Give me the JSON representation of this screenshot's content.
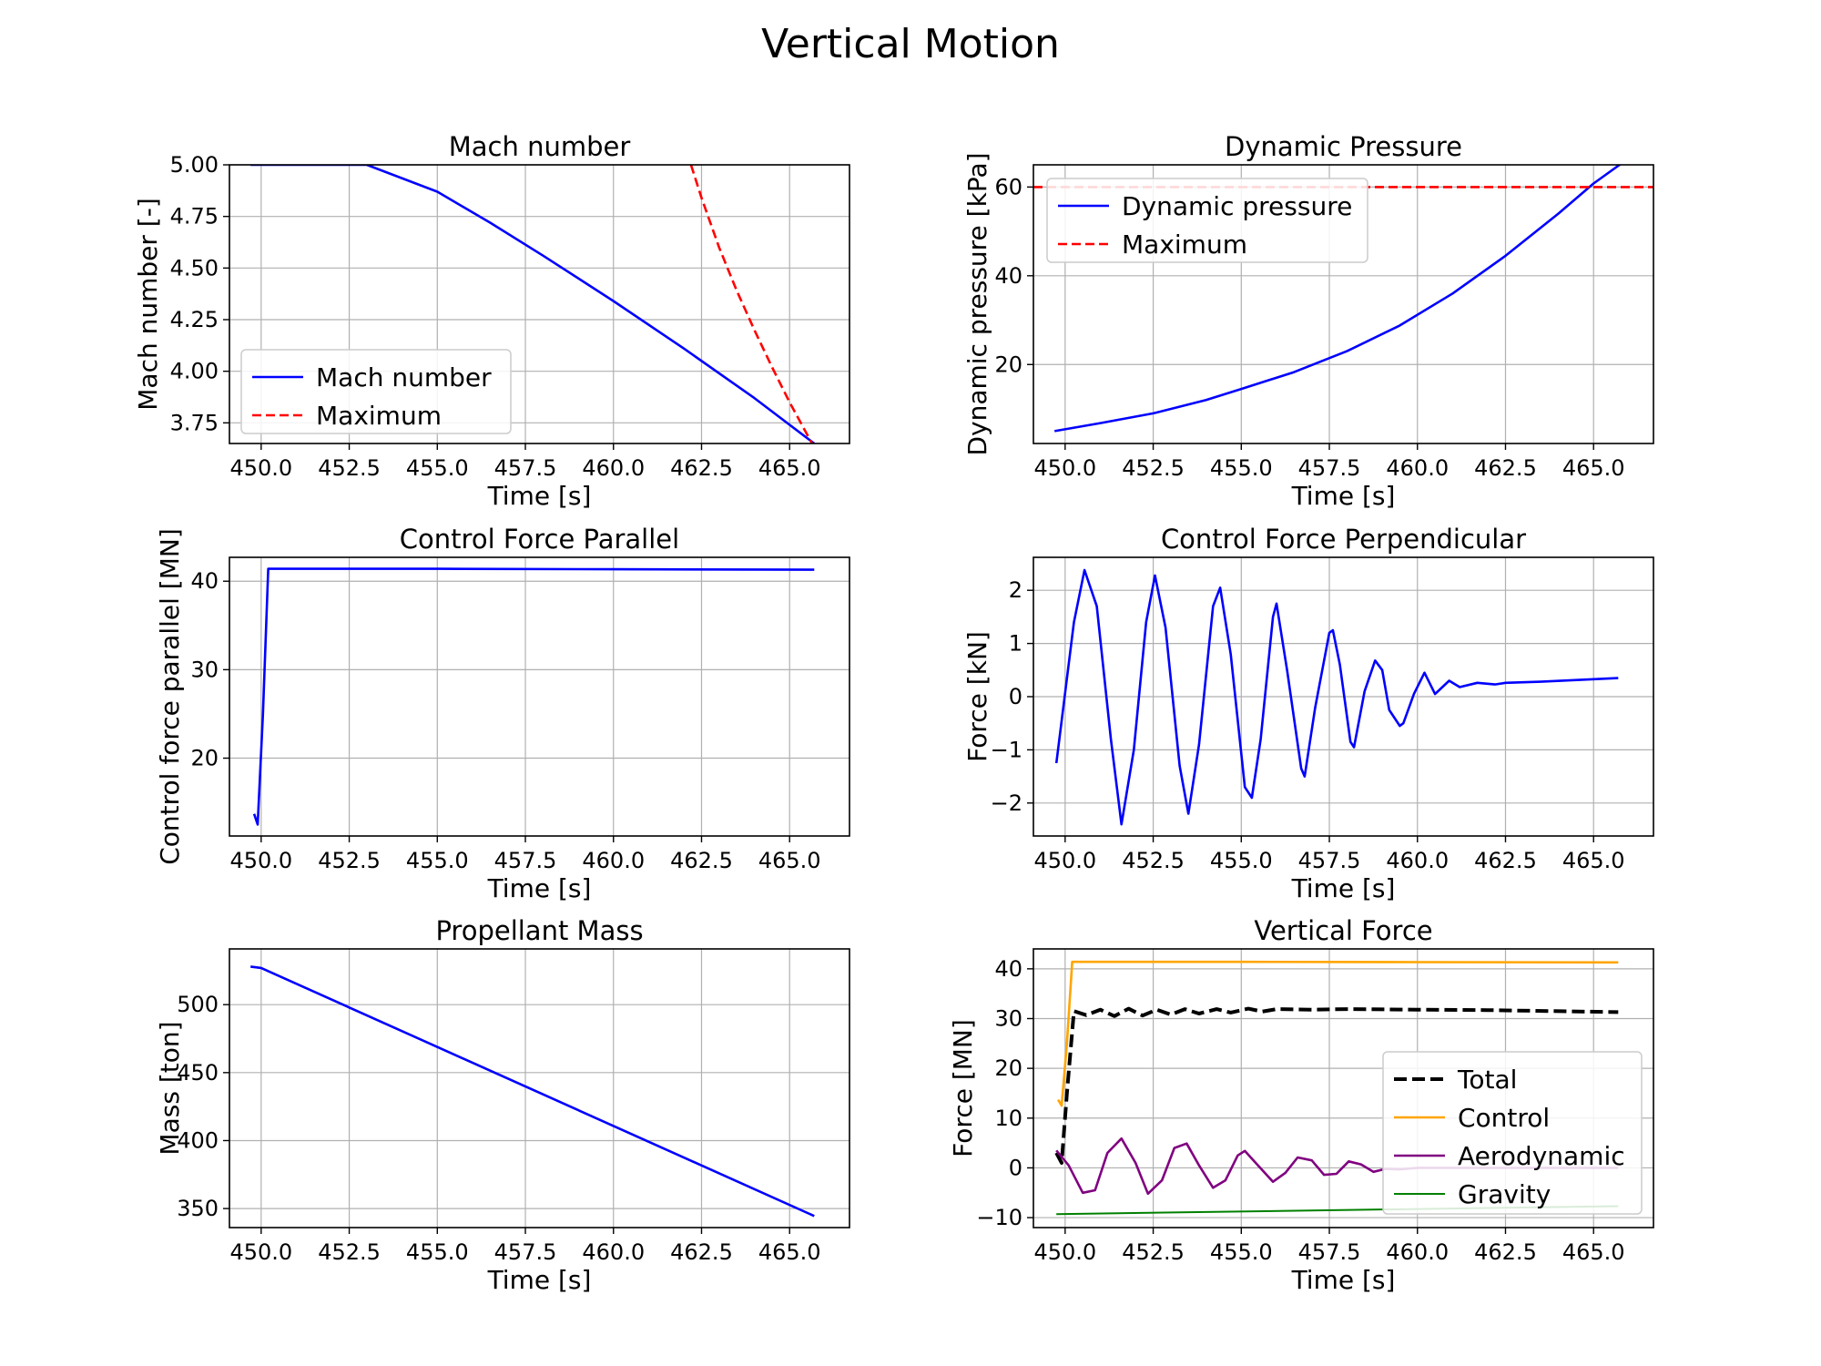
{
  "figure": {
    "title": "Vertical Motion"
  },
  "colors": {
    "blue": "#0000ff",
    "red": "#ff0000",
    "orange": "#ffa500",
    "purple": "#800080",
    "green": "#008000",
    "black": "#000000",
    "grid": "#b0b0b0"
  },
  "chart_data": [
    {
      "id": "mach",
      "type": "line",
      "title": "Mach number",
      "xlabel": "Time [s]",
      "ylabel": "Mach number [-]",
      "xlim": [
        449.1,
        466.7
      ],
      "ylim": [
        3.65,
        5.0
      ],
      "xticks": [
        450.0,
        452.5,
        455.0,
        457.5,
        460.0,
        462.5,
        465.0
      ],
      "xtick_labels": [
        "450.0",
        "452.5",
        "455.0",
        "457.5",
        "460.0",
        "462.5",
        "465.0"
      ],
      "yticks": [
        3.75,
        4.0,
        4.25,
        4.5,
        4.75,
        5.0
      ],
      "ytick_labels": [
        "3.75",
        "4.00",
        "4.25",
        "4.50",
        "4.75",
        "5.00"
      ],
      "grid": true,
      "legend": {
        "position": "lower-left",
        "entries": [
          "Mach number",
          "Maximum"
        ]
      },
      "series": [
        {
          "name": "Mach number",
          "style": "solid",
          "color": "#0000ff",
          "x": [
            449.7,
            453.0,
            455.0,
            456.5,
            458.0,
            460.0,
            462.0,
            464.0,
            465.7
          ],
          "y": [
            5.0,
            5.0,
            4.87,
            4.72,
            4.56,
            4.34,
            4.11,
            3.87,
            3.65
          ]
        },
        {
          "name": "Maximum",
          "style": "dashed",
          "color": "#ff0000",
          "x": [
            462.2,
            462.5,
            463.0,
            463.5,
            464.0,
            464.5,
            465.0,
            465.7
          ],
          "y": [
            5.0,
            4.84,
            4.6,
            4.39,
            4.2,
            4.02,
            3.85,
            3.63
          ]
        }
      ]
    },
    {
      "id": "dynp",
      "type": "line",
      "title": "Dynamic Pressure",
      "xlabel": "Time [s]",
      "ylabel": "Dynamic pressure [kPa]",
      "xlim": [
        449.1,
        466.7
      ],
      "ylim": [
        2.2,
        65.0
      ],
      "xticks": [
        450.0,
        452.5,
        455.0,
        457.5,
        460.0,
        462.5,
        465.0
      ],
      "xtick_labels": [
        "450.0",
        "452.5",
        "455.0",
        "457.5",
        "460.0",
        "462.5",
        "465.0"
      ],
      "yticks": [
        20,
        40,
        60
      ],
      "ytick_labels": [
        "20",
        "40",
        "60"
      ],
      "grid": true,
      "legend": {
        "position": "top-left",
        "entries": [
          "Dynamic pressure",
          "Maximum"
        ]
      },
      "series": [
        {
          "name": "Dynamic pressure",
          "style": "solid",
          "color": "#0000ff",
          "x": [
            449.7,
            451.0,
            452.5,
            454.0,
            455.0,
            456.5,
            458.0,
            459.5,
            461.0,
            462.5,
            464.0,
            465.0,
            466.0
          ],
          "y": [
            5.0,
            6.8,
            9.0,
            12.0,
            14.5,
            18.3,
            23.0,
            28.8,
            36.0,
            44.5,
            54.0,
            60.8,
            66.5
          ]
        },
        {
          "name": "Maximum",
          "style": "dashed",
          "color": "#ff0000",
          "x": [
            449.1,
            466.7
          ],
          "y": [
            60.0,
            60.0
          ]
        }
      ]
    },
    {
      "id": "cfpar",
      "type": "line",
      "title": "Control Force Parallel",
      "xlabel": "Time [s]",
      "ylabel": "Control force parallel [MN]",
      "xlim": [
        449.1,
        466.7
      ],
      "ylim": [
        11.2,
        42.7
      ],
      "xticks": [
        450.0,
        452.5,
        455.0,
        457.5,
        460.0,
        462.5,
        465.0
      ],
      "xtick_labels": [
        "450.0",
        "452.5",
        "455.0",
        "457.5",
        "460.0",
        "462.5",
        "465.0"
      ],
      "yticks": [
        20,
        30,
        40
      ],
      "ytick_labels": [
        "20",
        "30",
        "40"
      ],
      "grid": true,
      "series": [
        {
          "name": "",
          "style": "solid",
          "color": "#0000ff",
          "x": [
            449.8,
            449.9,
            450.05,
            450.2,
            455.0,
            460.0,
            465.7
          ],
          "y": [
            13.7,
            12.5,
            25.0,
            41.4,
            41.4,
            41.35,
            41.3
          ]
        }
      ]
    },
    {
      "id": "cfperp",
      "type": "line",
      "title": "Control Force Perpendicular",
      "xlabel": "Time [s]",
      "ylabel": "Force [kN]",
      "xlim": [
        449.1,
        466.7
      ],
      "ylim": [
        -2.62,
        2.62
      ],
      "xticks": [
        450.0,
        452.5,
        455.0,
        457.5,
        460.0,
        462.5,
        465.0
      ],
      "xtick_labels": [
        "450.0",
        "452.5",
        "455.0",
        "457.5",
        "460.0",
        "462.5",
        "465.0"
      ],
      "yticks": [
        -2,
        -1,
        0,
        1,
        2
      ],
      "ytick_labels": [
        "−2",
        "−1",
        "0",
        "1",
        "2"
      ],
      "grid": true,
      "series": [
        {
          "name": "",
          "style": "solid",
          "color": "#0000ff",
          "x": [
            449.75,
            450.25,
            450.55,
            450.9,
            451.3,
            451.6,
            451.95,
            452.3,
            452.55,
            452.85,
            453.25,
            453.5,
            453.8,
            454.2,
            454.4,
            454.7,
            455.1,
            455.3,
            455.55,
            455.9,
            456.0,
            456.3,
            456.7,
            456.8,
            457.1,
            457.5,
            457.6,
            457.8,
            458.1,
            458.2,
            458.5,
            458.8,
            459.0,
            459.2,
            459.5,
            459.6,
            459.9,
            460.2,
            460.5,
            460.9,
            461.2,
            461.7,
            462.2,
            462.5,
            463.5,
            465.7
          ],
          "y": [
            -1.25,
            1.4,
            2.38,
            1.7,
            -0.8,
            -2.4,
            -1.0,
            1.4,
            2.28,
            1.3,
            -1.3,
            -2.2,
            -0.9,
            1.7,
            2.05,
            0.8,
            -1.7,
            -1.9,
            -0.8,
            1.5,
            1.75,
            0.5,
            -1.35,
            -1.5,
            -0.2,
            1.2,
            1.25,
            0.6,
            -0.85,
            -0.95,
            0.1,
            0.68,
            0.5,
            -0.25,
            -0.55,
            -0.5,
            0.05,
            0.45,
            0.05,
            0.3,
            0.18,
            0.26,
            0.23,
            0.26,
            0.28,
            0.35
          ]
        }
      ]
    },
    {
      "id": "prop",
      "type": "line",
      "title": "Propellant Mass",
      "xlabel": "Time [s]",
      "ylabel": "Mass [ton]",
      "xlim": [
        449.1,
        466.7
      ],
      "ylim": [
        336.0,
        541.0
      ],
      "xticks": [
        450.0,
        452.5,
        455.0,
        457.5,
        460.0,
        462.5,
        465.0
      ],
      "xtick_labels": [
        "450.0",
        "452.5",
        "455.0",
        "457.5",
        "460.0",
        "462.5",
        "465.0"
      ],
      "yticks": [
        350,
        400,
        450,
        500
      ],
      "ytick_labels": [
        "350",
        "400",
        "450",
        "500"
      ],
      "grid": true,
      "series": [
        {
          "name": "",
          "style": "solid",
          "color": "#0000ff",
          "x": [
            449.7,
            450.0,
            465.7
          ],
          "y": [
            528.0,
            527.0,
            344.5
          ]
        }
      ]
    },
    {
      "id": "vforce",
      "type": "line",
      "title": "Vertical Force",
      "xlabel": "Time [s]",
      "ylabel": "Force [MN]",
      "xlim": [
        449.1,
        466.7
      ],
      "ylim": [
        -12.0,
        44.0
      ],
      "xticks": [
        450.0,
        452.5,
        455.0,
        457.5,
        460.0,
        462.5,
        465.0
      ],
      "xtick_labels": [
        "450.0",
        "452.5",
        "455.0",
        "457.5",
        "460.0",
        "462.5",
        "465.0"
      ],
      "yticks": [
        -10,
        0,
        10,
        20,
        30,
        40
      ],
      "ytick_labels": [
        "−10",
        "0",
        "10",
        "20",
        "30",
        "40"
      ],
      "grid": true,
      "legend": {
        "position": "center-right",
        "entries": [
          "Total",
          "Control",
          "Aerodynamic",
          "Gravity"
        ]
      },
      "series": [
        {
          "name": "Total",
          "style": "dashed",
          "color": "#000000",
          "x": [
            449.75,
            449.9,
            450.05,
            450.25,
            450.6,
            451.0,
            451.4,
            451.8,
            452.2,
            452.6,
            453.0,
            453.4,
            453.8,
            454.3,
            454.7,
            455.2,
            455.6,
            456.0,
            457.0,
            458.0,
            460.0,
            462.0,
            465.7
          ],
          "y": [
            3.0,
            1.0,
            15.0,
            31.5,
            30.7,
            31.8,
            30.5,
            32.0,
            30.6,
            31.8,
            30.8,
            31.9,
            31.0,
            31.9,
            31.2,
            32.0,
            31.4,
            31.9,
            31.8,
            31.9,
            31.8,
            31.7,
            31.3
          ]
        },
        {
          "name": "Control",
          "style": "solid",
          "color": "#ffa500",
          "x": [
            449.8,
            449.9,
            450.05,
            450.2,
            455.0,
            460.0,
            465.7
          ],
          "y": [
            13.7,
            12.5,
            25.0,
            41.4,
            41.4,
            41.35,
            41.3
          ]
        },
        {
          "name": "Aerodynamic",
          "style": "solid",
          "color": "#800080",
          "x": [
            449.75,
            450.1,
            450.5,
            450.85,
            451.2,
            451.6,
            452.0,
            452.35,
            452.75,
            453.1,
            453.45,
            453.8,
            454.2,
            454.55,
            454.9,
            455.1,
            455.5,
            455.9,
            456.25,
            456.6,
            457.0,
            457.35,
            457.7,
            458.05,
            458.4,
            458.75,
            459.1,
            459.5,
            460.0,
            462.0,
            465.7
          ],
          "y": [
            3.5,
            0.5,
            -5.0,
            -4.5,
            3.0,
            5.9,
            1.0,
            -5.2,
            -2.5,
            4.0,
            4.9,
            0.5,
            -4.0,
            -2.5,
            2.5,
            3.4,
            0.3,
            -2.8,
            -1.0,
            2.1,
            1.5,
            -1.4,
            -1.2,
            1.3,
            0.7,
            -0.8,
            -0.2,
            -0.3,
            0.0,
            0.0,
            0.0
          ]
        },
        {
          "name": "Gravity",
          "style": "solid",
          "color": "#008000",
          "x": [
            449.75,
            465.7
          ],
          "y": [
            -9.3,
            -7.7
          ]
        }
      ]
    }
  ]
}
